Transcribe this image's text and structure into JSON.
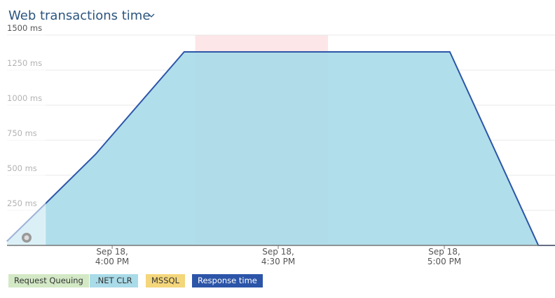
{
  "chart_data": {
    "type": "area",
    "title": "Web transactions time",
    "x": [
      "Sep 18, 3:41 PM",
      "Sep 18, 3:48 PM",
      "Sep 18, 3:57 PM",
      "Sep 18, 4:13 PM",
      "Sep 18, 5:01 PM",
      "Sep 18, 5:17 PM",
      "Sep 18, 5:20 PM"
    ],
    "xlim": [
      "Sep 18, 3:41 PM",
      "Sep 18, 5:20 PM"
    ],
    "xticks": [
      "Sep 18, 4:00 PM",
      "Sep 18, 4:30 PM",
      "Sep 18, 5:00 PM"
    ],
    "ylim": [
      0,
      1500
    ],
    "yticks": [
      {
        "value": 250,
        "label": "250 ms"
      },
      {
        "value": 500,
        "label": "500 ms"
      },
      {
        "value": 750,
        "label": "750 ms"
      },
      {
        "value": 1000,
        "label": "1000 ms"
      },
      {
        "value": 1250,
        "label": "1250 ms"
      },
      {
        "value": 1500,
        "label": "1500 ms"
      }
    ],
    "grid": true,
    "highlight": {
      "x": [
        "Sep 18, 4:15 PM",
        "Sep 18, 4:39 PM"
      ],
      "color": "#fde6e8"
    },
    "partial": {
      "x": [
        "Sep 18, 3:41 PM",
        "Sep 18, 3:48 PM"
      ],
      "color": "#ffffff"
    },
    "series": [
      {
        "name": "Request Queuing",
        "color": "#d3e9c6",
        "style": "area",
        "values": [
          0,
          0,
          0,
          0,
          0,
          0,
          0
        ]
      },
      {
        "name": ".NET CLR",
        "color": "#a9dbe8",
        "style": "area",
        "values": [
          30,
          300,
          650,
          1380,
          1380,
          0,
          0
        ]
      },
      {
        "name": "MSSQL",
        "color": "#f4d67b",
        "style": "area",
        "values": [
          0,
          0,
          0,
          0,
          0,
          0,
          0
        ]
      },
      {
        "name": "Response time",
        "color": "#2c55a8",
        "style": "line",
        "values": [
          30,
          300,
          650,
          1380,
          1380,
          0,
          0
        ]
      }
    ]
  }
}
